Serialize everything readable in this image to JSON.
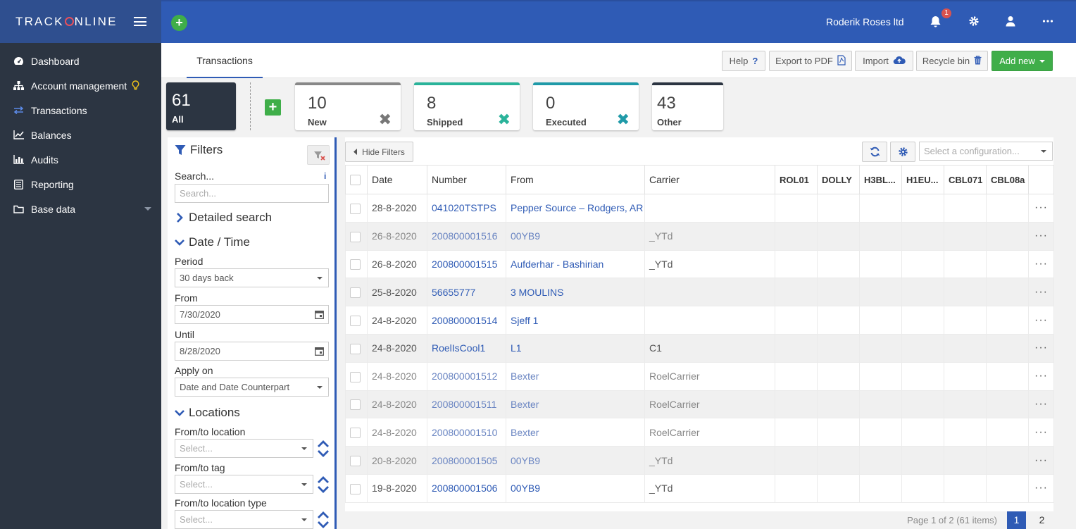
{
  "brand": {
    "name_pre": "TRACK",
    "name_post": "NLINE"
  },
  "topbar": {
    "company": "Roderik Roses ltd",
    "notification_count": "1"
  },
  "sidebar": {
    "items": [
      {
        "label": "Dashboard",
        "icon": "dashboard-icon"
      },
      {
        "label": "Account management",
        "icon": "sitemap-icon"
      },
      {
        "label": "Transactions",
        "icon": "exchange-icon"
      },
      {
        "label": "Balances",
        "icon": "line-chart-icon"
      },
      {
        "label": "Audits",
        "icon": "bar-chart-icon"
      },
      {
        "label": "Reporting",
        "icon": "list-icon"
      },
      {
        "label": "Base data",
        "icon": "folder-icon"
      }
    ]
  },
  "tabs": {
    "active": "Transactions"
  },
  "toolbar": {
    "help": "Help",
    "export_pdf": "Export to PDF",
    "import": "Import",
    "recycle_bin": "Recycle bin",
    "add_new": "Add new"
  },
  "status_cards": [
    {
      "count": "61",
      "label": "All",
      "color": "#2c3542"
    },
    {
      "count": "10",
      "label": "New",
      "color": "#888888"
    },
    {
      "count": "8",
      "label": "Shipped",
      "color": "#2ab39a"
    },
    {
      "count": "0",
      "label": "Executed",
      "color": "#1f9aa8"
    },
    {
      "count": "43",
      "label": "Other",
      "color": "#2c3542"
    }
  ],
  "filters": {
    "title": "Filters",
    "search_label": "Search...",
    "search_placeholder": "Search...",
    "detailed_search": "Detailed search",
    "date_time": "Date / Time",
    "period_label": "Period",
    "period_value": "30 days back",
    "from_label": "From",
    "from_value": "7/30/2020",
    "until_label": "Until",
    "until_value": "8/28/2020",
    "apply_on_label": "Apply on",
    "apply_on_value": "Date and Date Counterpart",
    "locations": "Locations",
    "from_to_location": "From/to location",
    "from_to_tag": "From/to tag",
    "from_to_location_type": "From/to location type",
    "select_placeholder": "Select..."
  },
  "grid": {
    "hide_filters": "Hide Filters",
    "config_placeholder": "Select a configuration...",
    "columns": [
      "Date",
      "Number",
      "From",
      "Carrier",
      "ROL01",
      "DOLLY",
      "H3BL...",
      "H1EU...",
      "CBL071",
      "CBL08a"
    ],
    "rows": [
      {
        "date": "28-8-2020",
        "number": "041020TSTPS",
        "from": "Pepper Source – Rodgers, AR",
        "carrier": "",
        "faded": false
      },
      {
        "date": "26-8-2020",
        "number": "200800001516",
        "from": "00YB9",
        "carrier": "_YTd",
        "faded": true
      },
      {
        "date": "26-8-2020",
        "number": "200800001515",
        "from": "Aufderhar - Bashirian",
        "carrier": "_YTd",
        "faded": false
      },
      {
        "date": "25-8-2020",
        "number": "56655777",
        "from": "3 MOULINS",
        "carrier": "",
        "faded": false
      },
      {
        "date": "24-8-2020",
        "number": "200800001514",
        "from": "Sjeff 1",
        "carrier": "",
        "faded": false
      },
      {
        "date": "24-8-2020",
        "number": "RoelIsCool1",
        "from": "L1",
        "carrier": "C1",
        "faded": false
      },
      {
        "date": "24-8-2020",
        "number": "200800001512",
        "from": "Bexter",
        "carrier": "RoelCarrier",
        "faded": true
      },
      {
        "date": "24-8-2020",
        "number": "200800001511",
        "from": "Bexter",
        "carrier": "RoelCarrier",
        "faded": true
      },
      {
        "date": "24-8-2020",
        "number": "200800001510",
        "from": "Bexter",
        "carrier": "RoelCarrier",
        "faded": true
      },
      {
        "date": "20-8-2020",
        "number": "200800001505",
        "from": "00YB9",
        "carrier": "_YTd",
        "faded": true
      },
      {
        "date": "19-8-2020",
        "number": "200800001506",
        "from": "00YB9",
        "carrier": "_YTd",
        "faded": false
      }
    ],
    "row_menu": "···"
  },
  "pager": {
    "info": "Page 1 of 2 (61 items)",
    "pages": [
      "1",
      "2"
    ],
    "current": "1"
  }
}
